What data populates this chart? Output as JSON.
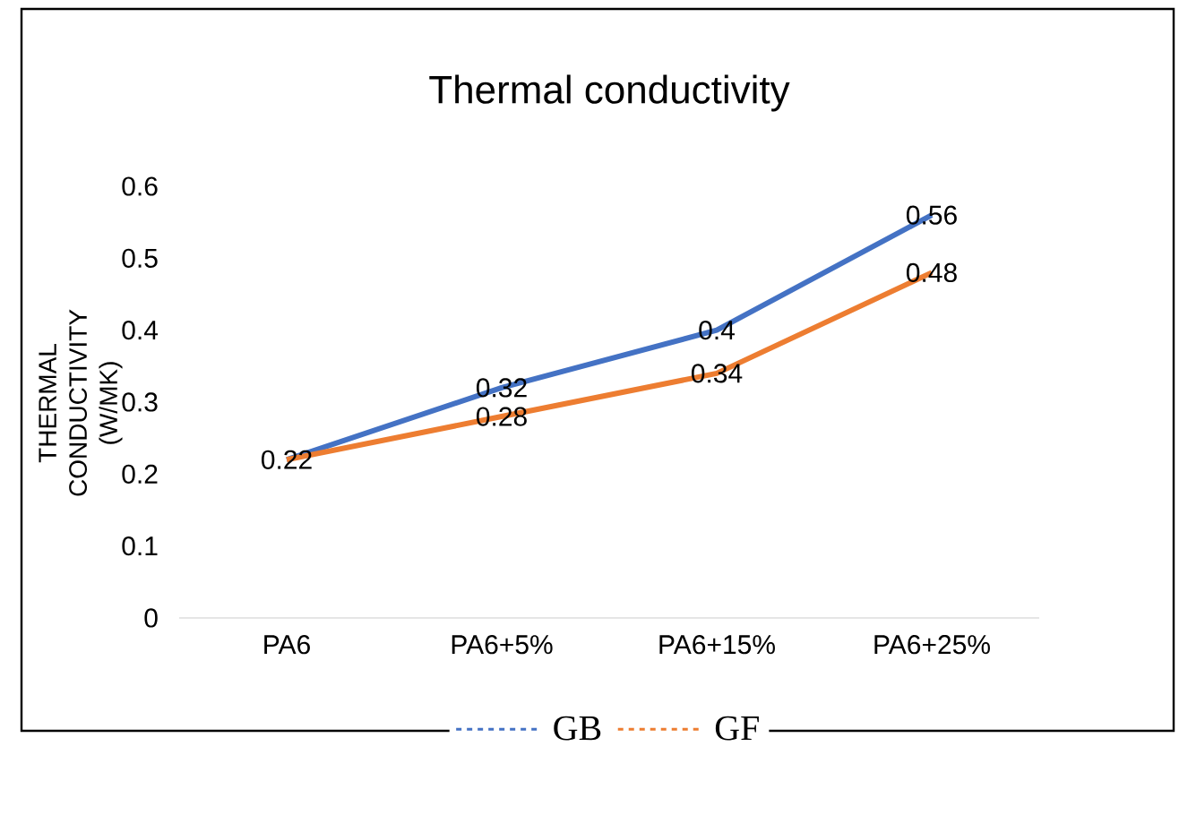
{
  "chart_data": {
    "type": "line",
    "title": "Thermal conductivity",
    "ylabel": "THERMAL CONDUCTIVITY (W/MK)",
    "categories": [
      "PA6",
      "PA6+5%",
      "PA6+15%",
      "PA6+25%"
    ],
    "series": [
      {
        "name": "GB",
        "color": "#4472c4",
        "values": [
          0.22,
          0.32,
          0.4,
          0.56
        ],
        "value_labels": [
          null,
          "0.32",
          "0.4",
          "0.56"
        ]
      },
      {
        "name": "GF",
        "color": "#ed7d31",
        "values": [
          0.22,
          0.28,
          0.34,
          0.48
        ],
        "value_labels": [
          "0.22",
          "0.28",
          "0.34",
          "0.48"
        ]
      }
    ],
    "ylim": [
      0,
      0.6
    ],
    "yticks": [
      0,
      0.1,
      0.2,
      0.3,
      0.4,
      0.5,
      0.6
    ],
    "legend": "bottom",
    "marker": "none",
    "line_style": "solid",
    "grid": false
  }
}
